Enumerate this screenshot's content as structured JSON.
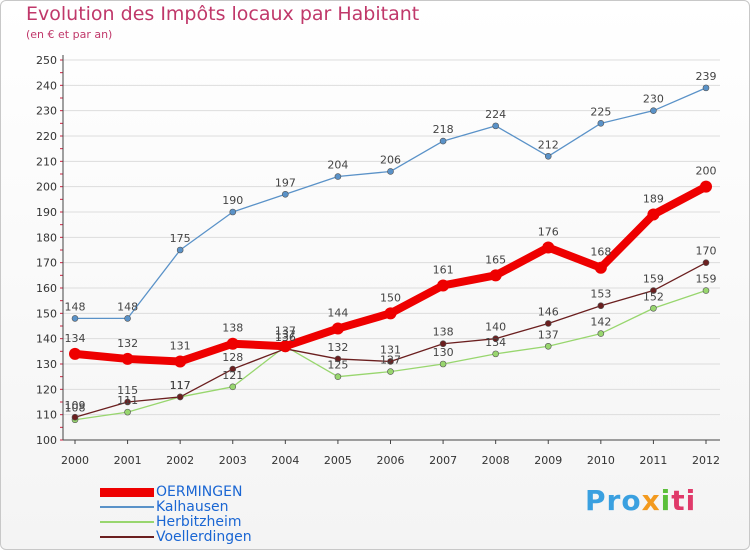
{
  "chart_data": {
    "type": "line",
    "title": "Evolution des Impôts locaux par Habitant",
    "subtitle": "(en € et par an)",
    "x": [
      "2000",
      "2001",
      "2002",
      "2003",
      "2004",
      "2005",
      "2006",
      "2007",
      "2008",
      "2009",
      "2010",
      "2011",
      "2012"
    ],
    "ylim": [
      100,
      250
    ],
    "yticks": [
      100,
      110,
      120,
      130,
      140,
      150,
      160,
      170,
      180,
      190,
      200,
      210,
      220,
      230,
      240,
      250
    ],
    "series": [
      {
        "name": "OERMINGEN",
        "color": "#ee0000",
        "values": [
          134,
          132,
          131,
          138,
          137,
          144,
          150,
          161,
          165,
          176,
          168,
          189,
          200
        ]
      },
      {
        "name": "Kalhausen",
        "color": "#5a92c8",
        "values": [
          148,
          148,
          175,
          190,
          197,
          204,
          206,
          218,
          224,
          212,
          225,
          230,
          239
        ]
      },
      {
        "name": "Herbitzheim",
        "color": "#98d66e",
        "values": [
          108,
          111,
          117,
          121,
          137,
          125,
          127,
          130,
          134,
          137,
          142,
          152,
          159
        ]
      },
      {
        "name": "Voellerdingen",
        "color": "#6b1f1f",
        "values": [
          109,
          115,
          117,
          128,
          136,
          132,
          131,
          138,
          140,
          146,
          153,
          159,
          170
        ]
      }
    ]
  },
  "brand": {
    "p1": "Pro",
    "p2": "x",
    "p3": "i",
    "p4": "ti"
  }
}
